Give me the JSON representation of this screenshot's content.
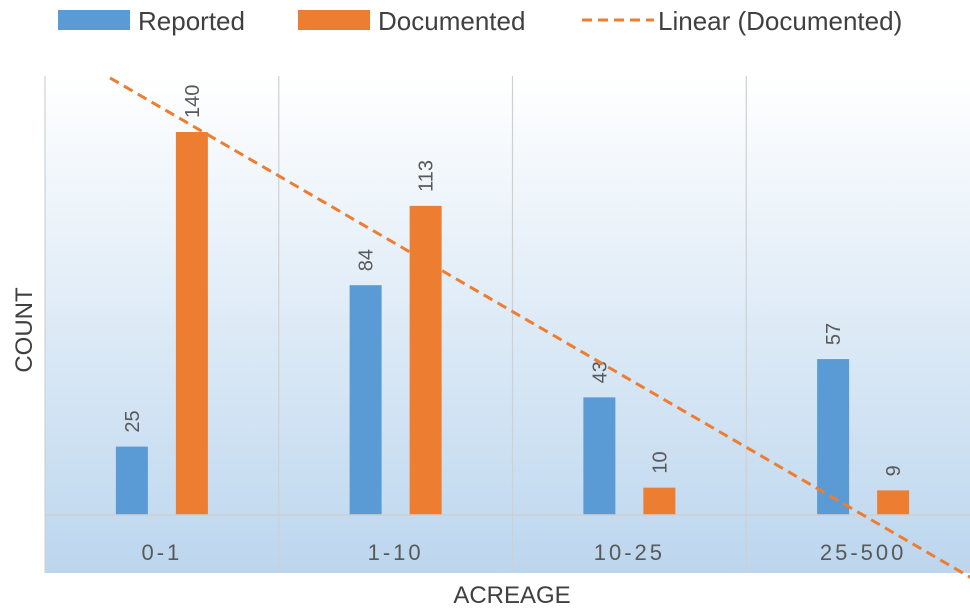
{
  "chart_data": {
    "type": "bar",
    "categories": [
      "0-1",
      "1-10",
      "10-25",
      "25-500"
    ],
    "series": [
      {
        "name": "Reported",
        "values": [
          25,
          84,
          43,
          57
        ],
        "color": "#5b9bd5"
      },
      {
        "name": "Documented",
        "values": [
          140,
          113,
          10,
          9
        ],
        "color": "#ed7d31"
      }
    ],
    "trendline": {
      "name": "Linear (Documented)",
      "series": "Documented",
      "type": "linear",
      "color": "#ed7d31",
      "style": "dashed"
    },
    "title": "",
    "xlabel": "ACREAGE",
    "ylabel": "COUNT",
    "ylim": [
      0,
      140
    ],
    "legend_position": "top",
    "grid": "vertical category separators",
    "data_labels": "rotated vertical above bars",
    "background": "light blue vertical gradient"
  }
}
